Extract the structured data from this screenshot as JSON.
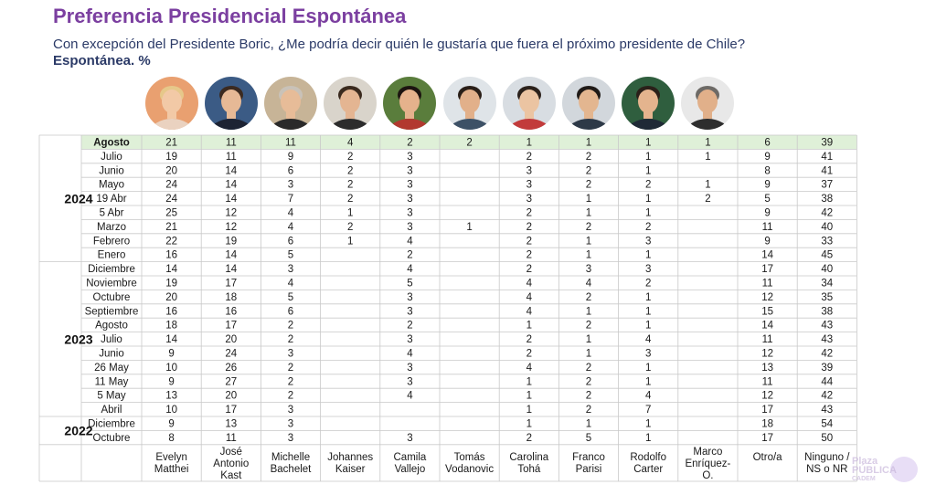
{
  "title": "Preferencia Presidencial Espontánea",
  "subtitle": "Con excepción del Presidente Boric, ¿Me podría decir quién le gustaría que fuera el próximo presidente de Chile?",
  "unit_label": "Espontánea. %",
  "watermark": {
    "line1": "Plaza",
    "line2": "PÚBLICA",
    "line3": "CADEM"
  },
  "colors": {
    "title": "#7b3fa0",
    "subtitle": "#2b3a67",
    "highlight_row": "#dff0d8",
    "grid": "#c9c9c9"
  },
  "chart_data": {
    "type": "table",
    "title": "Preferencia Presidencial Espontánea",
    "columns": [
      "Evelyn Matthei",
      "José Antonio Kast",
      "Michelle Bachelet",
      "Johannes Kaiser",
      "Camila Vallejo",
      "Tomás Vodanovic",
      "Carolina Tohá",
      "Franco Parisi",
      "Rodolfo Carter",
      "Marco Enríquez-O.",
      "Otro/a",
      "Ninguno / NS o NR"
    ],
    "column_labels": [
      [
        "Evelyn",
        "Matthei"
      ],
      [
        "José",
        "Antonio",
        "Kast"
      ],
      [
        "Michelle",
        "Bachelet"
      ],
      [
        "Johannes",
        "Kaiser"
      ],
      [
        "Camila",
        "Vallejo"
      ],
      [
        "Tomás",
        "Vodanovic"
      ],
      [
        "Carolina",
        "Tohá"
      ],
      [
        "Franco",
        "Parisi"
      ],
      [
        "Rodolfo",
        "Carter"
      ],
      [
        "Marco",
        "Enríquez-",
        "O."
      ],
      [
        "Otro/a"
      ],
      [
        "Ninguno /",
        "NS o NR"
      ]
    ],
    "groups": [
      {
        "year": "2024",
        "start": 0,
        "end": 8
      },
      {
        "year": "2023",
        "start": 9,
        "end": 19
      },
      {
        "year": "2022",
        "start": 20,
        "end": 21
      }
    ],
    "rows": [
      {
        "label": "Agosto",
        "highlight": true,
        "values": [
          "21",
          "11",
          "11",
          "4",
          "2",
          "2",
          "1",
          "1",
          "1",
          "1",
          "6",
          "39"
        ]
      },
      {
        "label": "Julio",
        "values": [
          "19",
          "11",
          "9",
          "2",
          "3",
          "",
          "2",
          "2",
          "1",
          "1",
          "9",
          "41"
        ]
      },
      {
        "label": "Junio",
        "values": [
          "20",
          "14",
          "6",
          "2",
          "3",
          "",
          "3",
          "2",
          "1",
          "",
          "8",
          "41"
        ]
      },
      {
        "label": "Mayo",
        "values": [
          "24",
          "14",
          "3",
          "2",
          "3",
          "",
          "3",
          "2",
          "2",
          "1",
          "9",
          "37"
        ]
      },
      {
        "label": "19 Abr",
        "values": [
          "24",
          "14",
          "7",
          "2",
          "3",
          "",
          "3",
          "1",
          "1",
          "2",
          "5",
          "38"
        ]
      },
      {
        "label": "5 Abr",
        "values": [
          "25",
          "12",
          "4",
          "1",
          "3",
          "",
          "2",
          "1",
          "1",
          "",
          "9",
          "42"
        ]
      },
      {
        "label": "Marzo",
        "values": [
          "21",
          "12",
          "4",
          "2",
          "3",
          "1",
          "2",
          "2",
          "2",
          "",
          "11",
          "40"
        ]
      },
      {
        "label": "Febrero",
        "values": [
          "22",
          "19",
          "6",
          "1",
          "4",
          "",
          "2",
          "1",
          "3",
          "",
          "9",
          "33"
        ]
      },
      {
        "label": "Enero",
        "values": [
          "16",
          "14",
          "5",
          "",
          "2",
          "",
          "2",
          "1",
          "1",
          "",
          "14",
          "45"
        ]
      },
      {
        "label": "Diciembre",
        "values": [
          "14",
          "14",
          "3",
          "",
          "4",
          "",
          "2",
          "3",
          "3",
          "",
          "17",
          "40"
        ]
      },
      {
        "label": "Noviembre",
        "values": [
          "19",
          "17",
          "4",
          "",
          "5",
          "",
          "4",
          "4",
          "2",
          "",
          "11",
          "34"
        ]
      },
      {
        "label": "Octubre",
        "values": [
          "20",
          "18",
          "5",
          "",
          "3",
          "",
          "4",
          "2",
          "1",
          "",
          "12",
          "35"
        ]
      },
      {
        "label": "Septiembre",
        "values": [
          "16",
          "16",
          "6",
          "",
          "3",
          "",
          "4",
          "1",
          "1",
          "",
          "15",
          "38"
        ]
      },
      {
        "label": "Agosto",
        "values": [
          "18",
          "17",
          "2",
          "",
          "2",
          "",
          "1",
          "2",
          "1",
          "",
          "14",
          "43"
        ]
      },
      {
        "label": "Julio",
        "values": [
          "14",
          "20",
          "2",
          "",
          "3",
          "",
          "2",
          "1",
          "4",
          "",
          "11",
          "43"
        ]
      },
      {
        "label": "Junio",
        "values": [
          "9",
          "24",
          "3",
          "",
          "4",
          "",
          "2",
          "1",
          "3",
          "",
          "12",
          "42"
        ]
      },
      {
        "label": "26 May",
        "values": [
          "10",
          "26",
          "2",
          "",
          "3",
          "",
          "4",
          "2",
          "1",
          "",
          "13",
          "39"
        ]
      },
      {
        "label": "11 May",
        "values": [
          "9",
          "27",
          "2",
          "",
          "3",
          "",
          "1",
          "2",
          "1",
          "",
          "11",
          "44"
        ]
      },
      {
        "label": "5 May",
        "values": [
          "13",
          "20",
          "2",
          "",
          "4",
          "",
          "1",
          "2",
          "4",
          "",
          "12",
          "42"
        ]
      },
      {
        "label": "Abril",
        "values": [
          "10",
          "17",
          "3",
          "",
          "",
          "",
          "1",
          "2",
          "7",
          "",
          "17",
          "43"
        ]
      },
      {
        "label": "Diciembre",
        "values": [
          "9",
          "13",
          "3",
          "",
          "",
          "",
          "1",
          "1",
          "1",
          "",
          "18",
          "54"
        ]
      },
      {
        "label": "Octubre",
        "values": [
          "8",
          "11",
          "3",
          "",
          "3",
          "",
          "2",
          "5",
          "1",
          "",
          "17",
          "50"
        ]
      }
    ]
  },
  "portraits": [
    {
      "name": "Evelyn Matthei",
      "icon": "portrait-icon",
      "bg": "#e9a070",
      "skin": "#f2c9a6",
      "hair": "#e6c88a",
      "shirt": "#ead2c0"
    },
    {
      "name": "José Antonio Kast",
      "icon": "portrait-icon",
      "bg": "#3b5b85",
      "skin": "#e6b996",
      "hair": "#3b2a20",
      "shirt": "#1d2333"
    },
    {
      "name": "Michelle Bachelet",
      "icon": "portrait-icon",
      "bg": "#c7b497",
      "skin": "#e7bc98",
      "hair": "#c9c2b8",
      "shirt": "#2a2a2a"
    },
    {
      "name": "Johannes Kaiser",
      "icon": "portrait-icon",
      "bg": "#d9d4cb",
      "skin": "#e4b592",
      "hair": "#3a2a1e",
      "shirt": "#2c2c2c"
    },
    {
      "name": "Camila Vallejo",
      "icon": "portrait-icon",
      "bg": "#5a7d3c",
      "skin": "#e5b28c",
      "hair": "#1c1410",
      "shirt": "#b2382f"
    },
    {
      "name": "Tomás Vodanovic",
      "icon": "portrait-icon",
      "bg": "#dfe4e8",
      "skin": "#e2b08a",
      "hair": "#2a1f18",
      "shirt": "#3d5166"
    },
    {
      "name": "Carolina Tohá",
      "icon": "portrait-icon",
      "bg": "#d8dde2",
      "skin": "#ebc4a2",
      "hair": "#2b211b",
      "shirt": "#c23b3b"
    },
    {
      "name": "Franco Parisi",
      "icon": "portrait-icon",
      "bg": "#d2d7dc",
      "skin": "#e3b690",
      "hair": "#1f1a17",
      "shirt": "#2d3947"
    },
    {
      "name": "Rodolfo Carter",
      "icon": "portrait-icon",
      "bg": "#2f5e3e",
      "skin": "#e4b48e",
      "hair": "#2a2019",
      "shirt": "#1f2a36"
    },
    {
      "name": "Marco Enríquez-O.",
      "icon": "portrait-icon",
      "bg": "#e8e8e8",
      "skin": "#e1b08a",
      "hair": "#6d6a66",
      "shirt": "#2d2d2d"
    }
  ]
}
